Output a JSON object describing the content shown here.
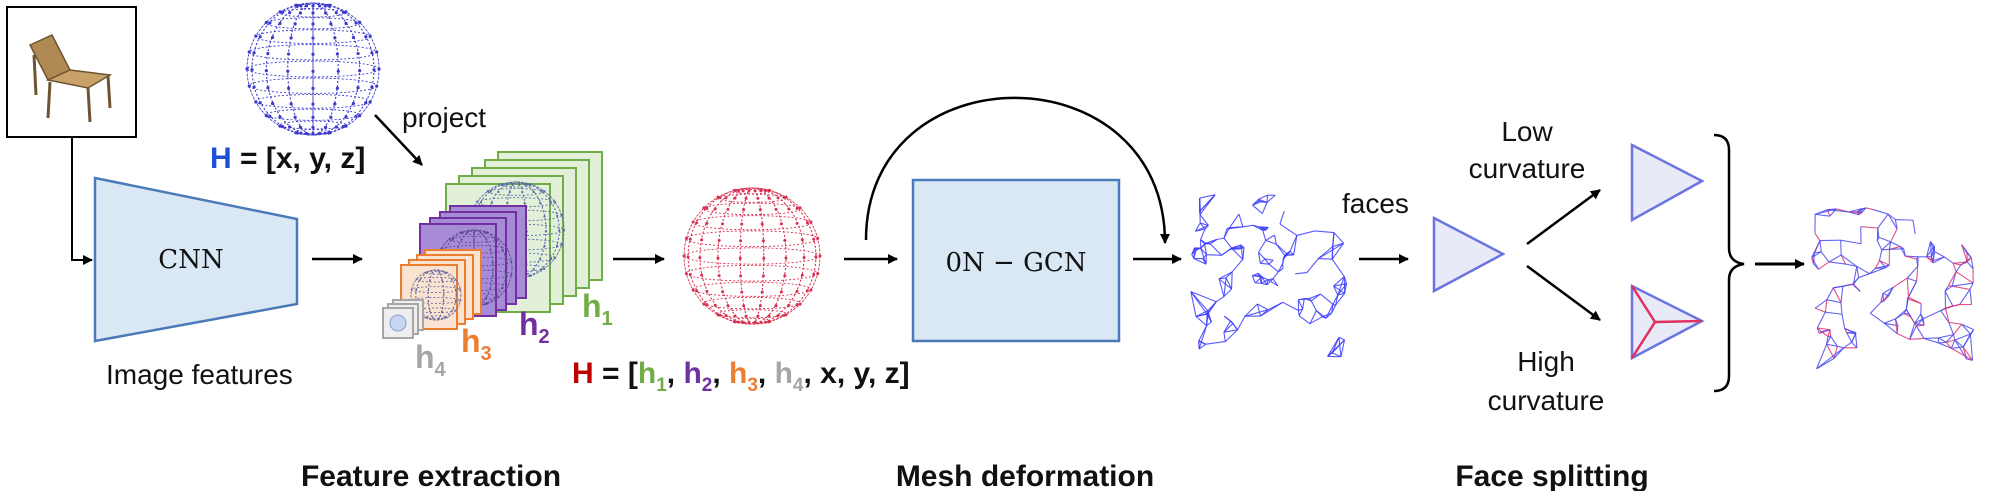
{
  "labels": {
    "cnn": "CNN",
    "image_features": "Image features",
    "project": "project",
    "onn_gcn": "0N − GCN",
    "faces": "faces",
    "low_curvature_1": "Low",
    "low_curvature_2": "curvature",
    "high_curvature_1": "High",
    "high_curvature_2": "curvature"
  },
  "equation_h": {
    "var": "H",
    "rest": " = [x, y, z]"
  },
  "equation_hfull": {
    "var": "H",
    "eq": " = [",
    "h1": "h",
    "h1sub": "1",
    "h2": "h",
    "h2sub": "2",
    "h3": "h",
    "h3sub": "3",
    "h4": "h",
    "h4sub": "4",
    "comma": ", ",
    "tail": "x, y, z]"
  },
  "stack_labels": {
    "h1": "h",
    "h1sub": "1",
    "h2": "h",
    "h2sub": "2",
    "h3": "h",
    "h3sub": "3",
    "h4": "h",
    "h4sub": "4"
  },
  "sections": {
    "feature_extraction": "Feature extraction",
    "mesh_deformation": "Mesh deformation",
    "face_splitting": "Face splitting"
  },
  "colors": {
    "blue_var": "#1f4fd6",
    "red_var": "#c00000",
    "h1": "#70ad47",
    "h2": "#7030a0",
    "h3": "#ed7d31",
    "h4": "#a6a6a6",
    "box_fill": "#dae7f5",
    "box_stroke": "#4a7ab8",
    "mesh_blue": "#3b3bff",
    "mesh_red": "#e03060"
  }
}
